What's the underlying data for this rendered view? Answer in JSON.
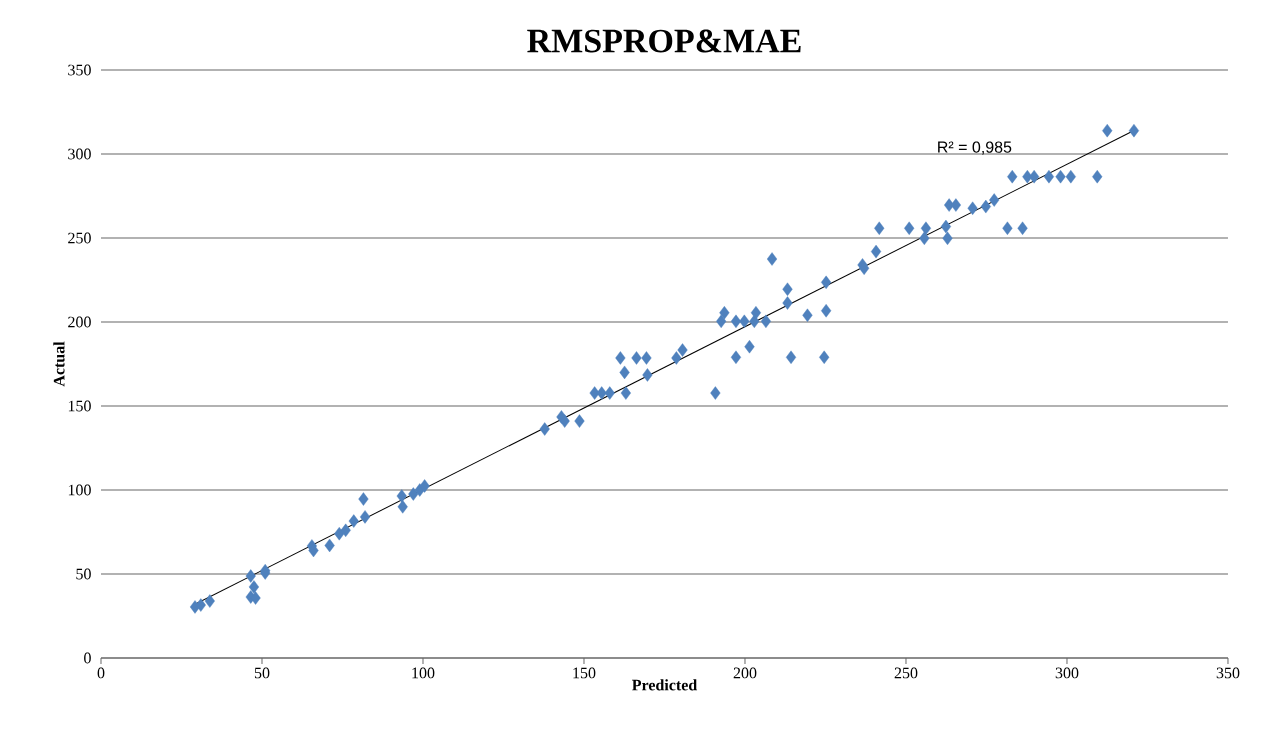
{
  "chart_data": {
    "type": "scatter",
    "title": "RMSPROP&MAE",
    "xlabel": "Predicted",
    "ylabel": "Actual",
    "xlim": [
      0,
      350
    ],
    "ylim": [
      0,
      350
    ],
    "xticks": [
      0,
      50,
      100,
      150,
      200,
      250,
      300,
      350
    ],
    "yticks": [
      0,
      50,
      100,
      150,
      200,
      250,
      300,
      350
    ],
    "grid": "y",
    "annotations": [
      "R² = 0,985"
    ],
    "series": [
      {
        "color": "#4f81bd",
        "marker": "diamond",
        "x": [
          29.2,
          31,
          33.8,
          46.5,
          47.5,
          46.5,
          48,
          51,
          51,
          65.5,
          66,
          71,
          74,
          76,
          78.5,
          81.5,
          82,
          93.4,
          93.7,
          97,
          99,
          100.5,
          137.8,
          143,
          144,
          148.6,
          153.3,
          155.5,
          158,
          163,
          161.3,
          162.6,
          166.3,
          169.4,
          169.7,
          178.7,
          180.6,
          190.8,
          208.4,
          213.2,
          213.2,
          225.2,
          225.2,
          219.4,
          214.3,
          224.6,
          197.2,
          201.4,
          192.6,
          197.2,
          199.8,
          202.9,
          206.5,
          193.6,
          203.4,
          236.5,
          312.5,
          320.8,
          283,
          287.7,
          289.8,
          294.4,
          298,
          301.2,
          309.4,
          263.4,
          265.5,
          270.7,
          274.8,
          277.4,
          241.7,
          251,
          256.2,
          255.7,
          262.4,
          262.9,
          281.5,
          286.2,
          240.7,
          237
        ],
        "values": [
          30.4,
          31.5,
          33.9,
          48.8,
          42.3,
          36.3,
          35.7,
          52,
          50.6,
          66.7,
          64,
          67,
          74,
          76,
          81.5,
          94.6,
          84,
          96.4,
          90,
          97.6,
          100,
          102.4,
          136.3,
          143.5,
          141,
          141,
          157.7,
          157.7,
          157.7,
          157.7,
          178.6,
          170,
          178.6,
          178.6,
          168.5,
          178.6,
          183.3,
          157.7,
          237.5,
          219.5,
          211.3,
          223.6,
          206.7,
          204,
          179,
          179,
          179,
          185.3,
          200.4,
          200.4,
          200.4,
          200.4,
          200.4,
          205.5,
          205.5,
          234,
          313.9,
          313.9,
          286.5,
          286.5,
          286.5,
          286.5,
          286.5,
          286.5,
          286.5,
          269.6,
          269.6,
          267.7,
          268.7,
          272.6,
          255.8,
          255.8,
          255.8,
          249.8,
          256.8,
          249.8,
          255.8,
          255.8,
          241.9,
          232
        ]
      },
      {
        "type": "line",
        "color": "#000000",
        "marker": "none",
        "x": [
          29.2,
          320.8
        ],
        "values": [
          32,
          314
        ]
      }
    ]
  }
}
